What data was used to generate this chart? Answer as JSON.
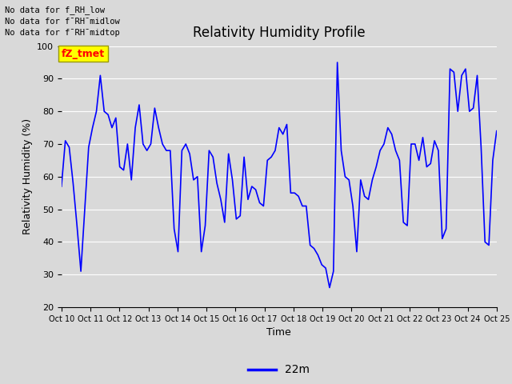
{
  "title": "Relativity Humidity Profile",
  "ylabel": "Relativity Humidity (%)",
  "xlabel": "Time",
  "ylim": [
    20,
    100
  ],
  "line_color": "#0000FF",
  "line_width": 1.2,
  "legend_label": "22m",
  "legend_line_color": "#0000FF",
  "fig_bg_color": "#d9d9d9",
  "plot_bg_color": "#d9d9d9",
  "annotations": [
    "No data for f_RH_low",
    "No data for f¯RH¯midlow",
    "No data for f¯RH¯midtop"
  ],
  "legend_box_color": "#FFFF00",
  "legend_text_color": "#FF0000",
  "legend_box_label": "fZ_tmet",
  "x_tick_labels": [
    "Oct 10",
    "Oct 11",
    "Oct 12",
    "Oct 13",
    "Oct 14",
    "Oct 15",
    "Oct 16",
    "Oct 17",
    "Oct 18",
    "Oct 19",
    "Oct 20",
    "Oct 21",
    "Oct 22",
    "Oct 23",
    "Oct 24",
    "Oct 25"
  ],
  "y_values": [
    57,
    71,
    69,
    58,
    45,
    31,
    50,
    69,
    75,
    80,
    91,
    80,
    79,
    75,
    78,
    63,
    62,
    70,
    59,
    75,
    82,
    70,
    68,
    70,
    81,
    75,
    70,
    68,
    68,
    44,
    37,
    68,
    70,
    67,
    59,
    60,
    37,
    45,
    68,
    66,
    58,
    53,
    46,
    67,
    59,
    47,
    48,
    66,
    53,
    57,
    56,
    52,
    51,
    65,
    66,
    68,
    75,
    73,
    76,
    55,
    55,
    54,
    51,
    51,
    39,
    38,
    36,
    33,
    32,
    26,
    31,
    95,
    68,
    60,
    59,
    51,
    37,
    59,
    54,
    53,
    59,
    63,
    68,
    70,
    75,
    73,
    68,
    65,
    46,
    45,
    70,
    70,
    65,
    72,
    63,
    64,
    71,
    68,
    41,
    44,
    93,
    92,
    80,
    91,
    93,
    80,
    81,
    91,
    69,
    40,
    39,
    65,
    74
  ]
}
